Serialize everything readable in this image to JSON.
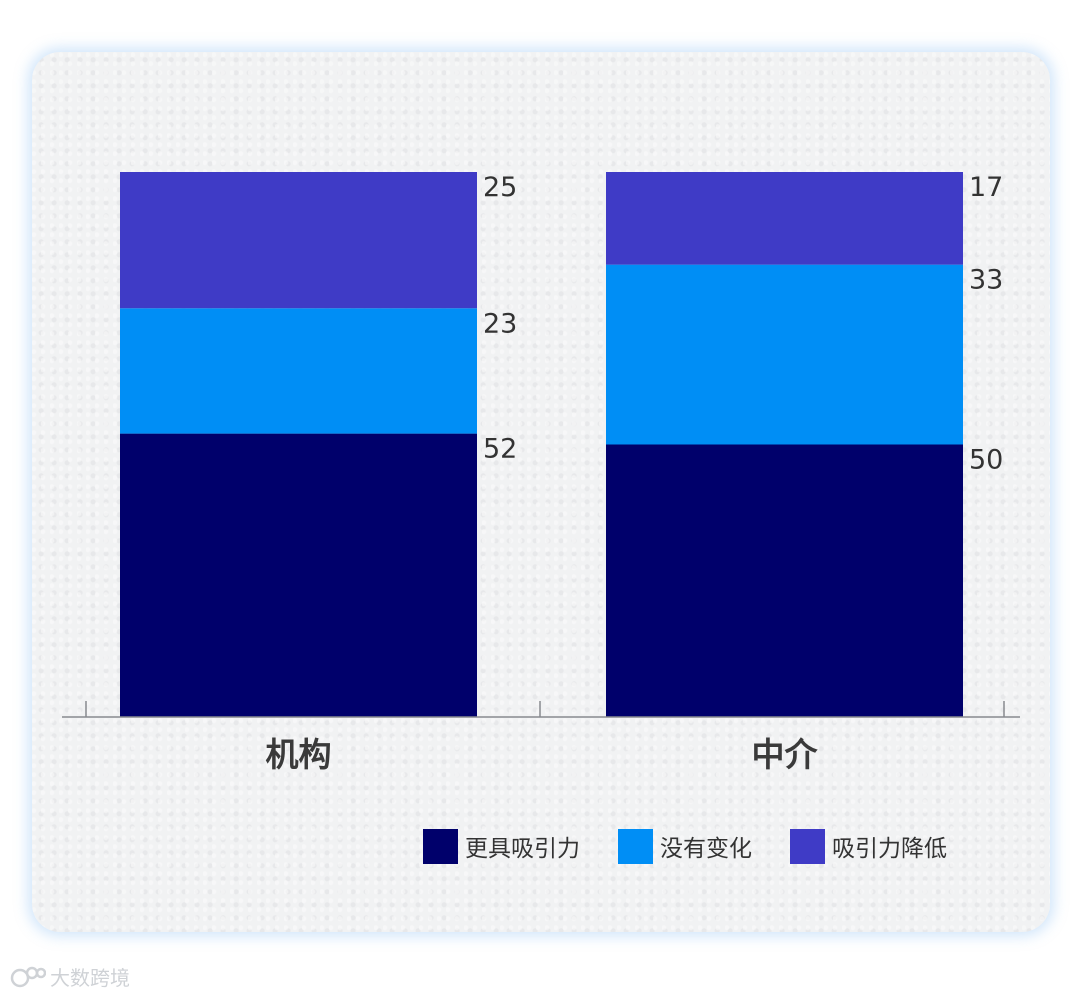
{
  "chart_data": {
    "type": "bar",
    "stacked": true,
    "categories": [
      "机构",
      "中介"
    ],
    "series": [
      {
        "name": "更具吸引力",
        "values": [
          52,
          50
        ],
        "color": "#00006b"
      },
      {
        "name": "没有变化",
        "values": [
          23,
          33
        ],
        "color": "#008ef5"
      },
      {
        "name": "吸引力降低",
        "values": [
          25,
          17
        ],
        "color": "#3f3bc6"
      }
    ],
    "ylim": [
      0,
      100
    ],
    "grid": false,
    "legend_position": "bottom-right"
  },
  "watermark": {
    "text": "大数跨境",
    "icon": "brand-logo-icon"
  }
}
